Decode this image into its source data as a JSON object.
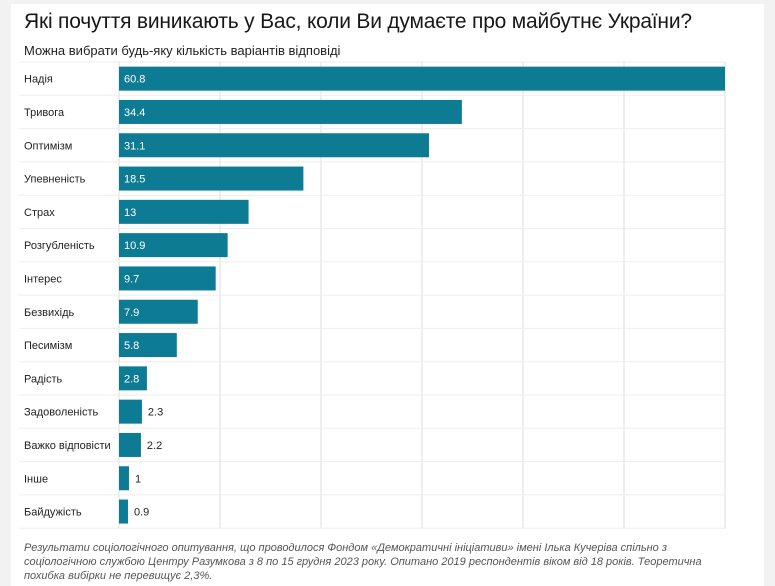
{
  "title": "Які почуття виникають у Вас, коли Ви думаєте про майбутнє України?",
  "subtitle": "Можна вибрати будь-яку кількість варіантів відповіді",
  "footnote": "Результати соціологічного опитування, що проводилося Фондом «Демократичні ініціативи» імені Ілька Кучеріва спільно з соціологічною службою Центру Разумкова з 8 по 15 грудня 2023 року. Опитано 2019 респондентів віком від 18 років. Теоретична похибка вибірки не перевищує 2,3%.",
  "colors": {
    "bar": "#0c7b93",
    "grid": "#dddddd",
    "label_inside": "#ffffff",
    "label_outside": "#222222"
  },
  "chart_data": {
    "type": "bar",
    "orientation": "horizontal",
    "categories": [
      "Надія",
      "Тривога",
      "Оптимізм",
      "Упевненість",
      "Страх",
      "Розгубленість",
      "Інтерес",
      "Безвихідь",
      "Песимізм",
      "Радість",
      "Задоволеність",
      "Важко відповісти",
      "Інше",
      "Байдужість"
    ],
    "values": [
      60.8,
      34.4,
      31.1,
      18.5,
      13,
      10.9,
      9.7,
      7.9,
      5.8,
      2.8,
      2.3,
      2.2,
      1,
      0.9
    ],
    "value_labels": [
      "60.8",
      "34.4",
      "31.1",
      "18.5",
      "13",
      "10.9",
      "9.7",
      "7.9",
      "5.8",
      "2.8",
      "2.3",
      "2.2",
      "1",
      "0.9"
    ],
    "xlim": [
      0,
      60.8
    ],
    "grid": true,
    "legend": "none"
  }
}
